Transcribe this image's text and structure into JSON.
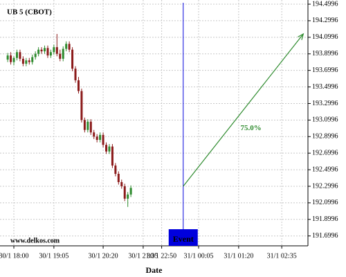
{
  "chart_data": {
    "type": "candlestick",
    "title": "UB 5 (CBOT)",
    "watermark": "www.delkos.com",
    "x_label": "Date",
    "up_color": "#2e8b2e",
    "down_color": "#8b1a1a",
    "grid": true,
    "x": [
      -2,
      -1,
      0,
      1,
      2,
      3,
      4,
      5,
      6,
      7,
      8,
      9,
      10,
      11,
      12,
      13,
      14,
      15,
      16,
      17,
      18,
      19,
      20,
      21,
      22,
      23,
      24,
      25,
      26,
      27,
      28,
      29,
      30,
      31,
      32,
      33,
      34,
      35,
      36,
      37,
      38
    ],
    "open": [
      193.83,
      193.88,
      193.8,
      193.85,
      193.92,
      193.84,
      193.78,
      193.82,
      193.8,
      193.86,
      193.9,
      193.95,
      193.93,
      193.97,
      193.88,
      193.92,
      193.98,
      193.9,
      193.84,
      193.96,
      194.02,
      193.95,
      193.72,
      193.58,
      193.45,
      193.1,
      192.98,
      193.08,
      192.95,
      192.9,
      192.86,
      192.92,
      192.8,
      192.72,
      192.78,
      192.55,
      192.45,
      192.35,
      192.3,
      192.15,
      192.2
    ],
    "high": [
      193.91,
      193.92,
      193.87,
      193.95,
      193.95,
      193.87,
      193.85,
      193.85,
      193.89,
      193.93,
      193.98,
      193.98,
      194.0,
      194.0,
      193.95,
      194.01,
      194.14,
      193.95,
      193.99,
      194.05,
      194.05,
      193.98,
      193.75,
      193.62,
      193.48,
      193.13,
      193.11,
      193.11,
      192.98,
      192.93,
      192.95,
      192.95,
      192.83,
      192.81,
      192.81,
      192.58,
      192.48,
      192.38,
      192.33,
      192.23,
      192.31
    ],
    "low": [
      193.8,
      193.77,
      193.76,
      193.82,
      193.81,
      193.75,
      193.75,
      193.77,
      193.77,
      193.83,
      193.87,
      193.9,
      193.9,
      193.85,
      193.85,
      193.89,
      193.87,
      193.81,
      193.81,
      193.93,
      193.92,
      193.69,
      193.55,
      193.42,
      193.07,
      192.95,
      192.95,
      192.92,
      192.87,
      192.83,
      192.83,
      192.77,
      192.69,
      192.69,
      192.52,
      192.42,
      192.32,
      192.27,
      192.12,
      192.05,
      192.17
    ],
    "close": [
      193.88,
      193.8,
      193.85,
      193.92,
      193.84,
      193.78,
      193.82,
      193.8,
      193.86,
      193.9,
      193.95,
      193.93,
      193.97,
      193.88,
      193.92,
      193.98,
      193.9,
      193.84,
      193.96,
      194.02,
      193.95,
      193.72,
      193.58,
      193.45,
      193.1,
      192.98,
      193.08,
      192.95,
      192.9,
      192.86,
      192.92,
      192.8,
      192.72,
      192.78,
      192.55,
      192.45,
      192.35,
      192.3,
      192.15,
      192.2,
      192.28
    ],
    "xlim": [
      -4.5,
      95.5
    ],
    "ylim": [
      191.58,
      194.55
    ],
    "yticks": [
      194.4996,
      194.2996,
      194.0996,
      193.8996,
      193.6996,
      193.4996,
      193.2996,
      193.0996,
      192.8996,
      192.6996,
      192.4996,
      192.2996,
      192.0996,
      191.8996,
      191.6996
    ],
    "xticks": [
      {
        "value": 0,
        "label": "30/1 18:00"
      },
      {
        "value": 13,
        "label": "30/1 19:05"
      },
      {
        "value": 29,
        "label": "30/1 20:20"
      },
      {
        "value": 42,
        "label": "30/1 21:35"
      },
      {
        "value": 48,
        "label": "30/1 22:50"
      },
      {
        "value": 60,
        "label": "31/1 00:05"
      },
      {
        "value": 73,
        "label": "31/1 01:20"
      },
      {
        "value": 87,
        "label": "31/1 02:35"
      }
    ],
    "event": {
      "x": 55,
      "label": "Event",
      "color": "#0000dd"
    },
    "arrow": {
      "x": [
        55,
        94
      ],
      "y": [
        192.2996,
        194.14
      ],
      "label": "75.0%",
      "label_x": 77,
      "label_y": 193.0,
      "color": "#2e8b2e"
    }
  }
}
